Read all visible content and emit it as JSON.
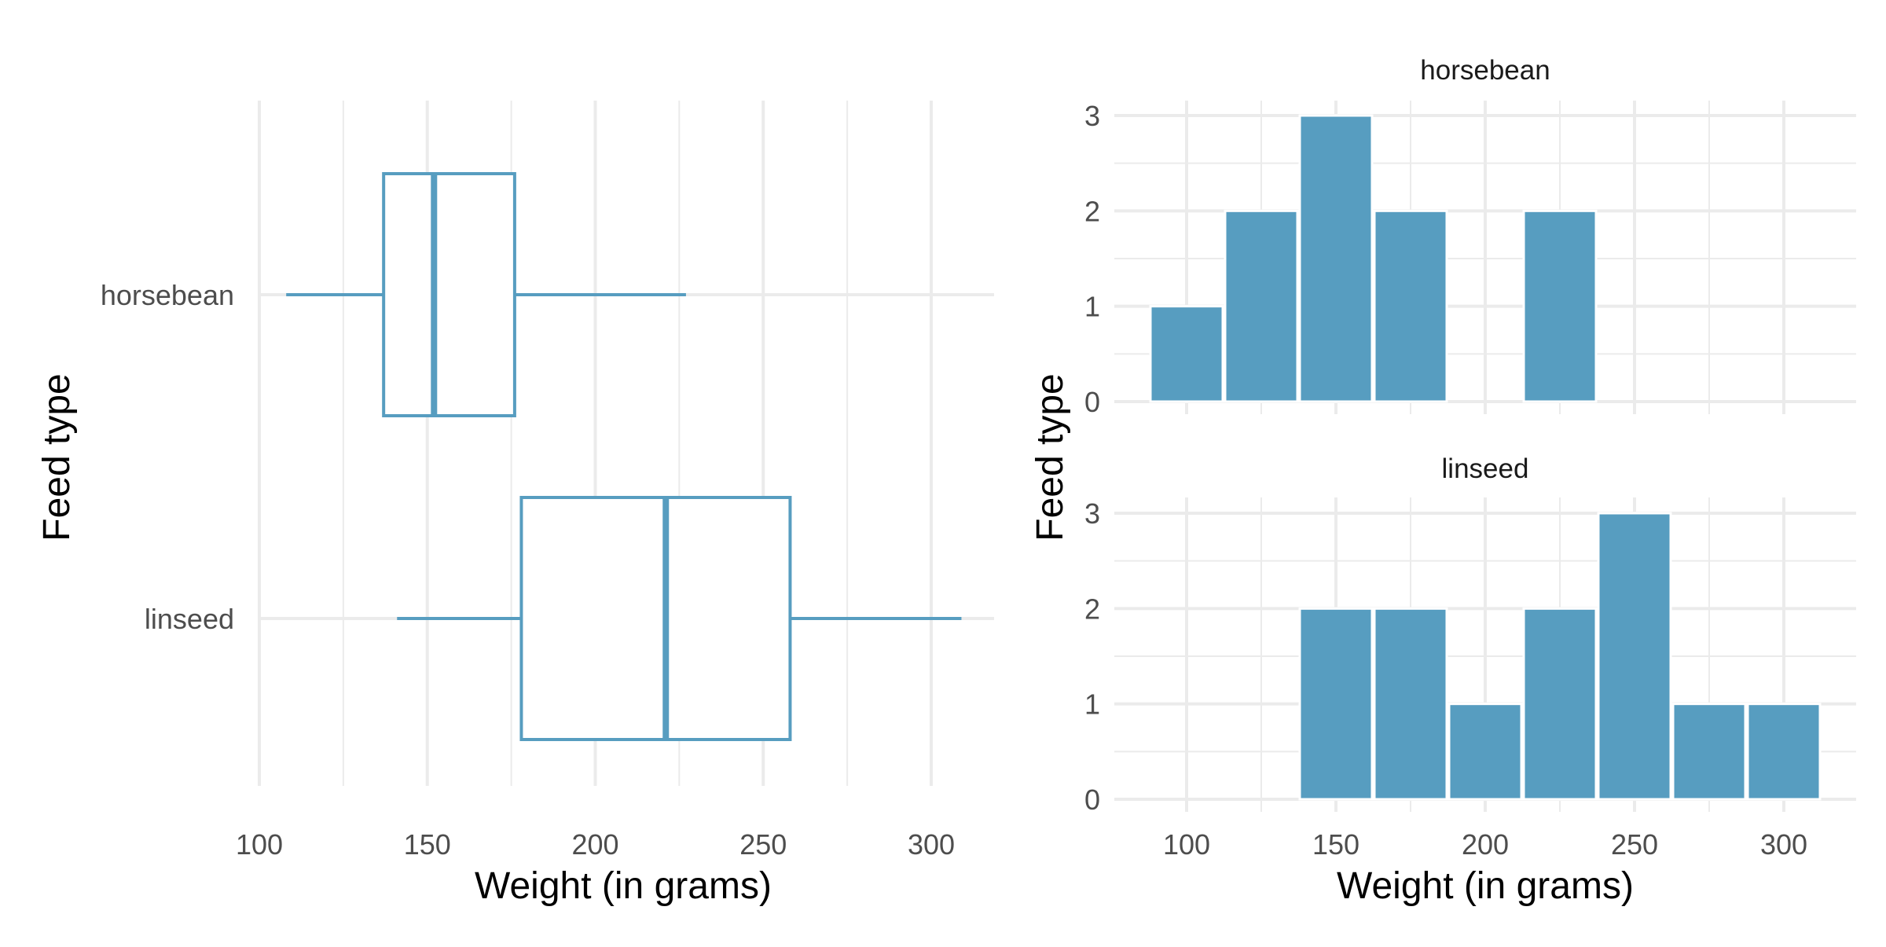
{
  "colors": {
    "fill": "#579dc0",
    "grid": "#ebebeb",
    "background": "#ffffff"
  },
  "chart_data": [
    {
      "type": "boxplot",
      "orientation": "horizontal",
      "xlabel": "Weight (in grams)",
      "ylabel": "Feed type",
      "xlim": [
        100,
        320
      ],
      "xticks": [
        100,
        150,
        200,
        250,
        300
      ],
      "grid": true,
      "categories": [
        "horsebean",
        "linseed"
      ],
      "series": [
        {
          "name": "horsebean",
          "whisker_low": 108,
          "q1": 137,
          "median": 152,
          "q3": 176,
          "whisker_high": 227
        },
        {
          "name": "linseed",
          "whisker_low": 141,
          "q1": 178,
          "median": 221,
          "q3": 258,
          "whisker_high": 309
        }
      ]
    },
    {
      "type": "histogram",
      "facet": "horsebean",
      "xlabel": "Weight (in grams)",
      "ylabel": "Feed type",
      "xlim": [
        100,
        312.5
      ],
      "ylim": [
        0,
        3
      ],
      "xticks": [
        100,
        150,
        200,
        250,
        300
      ],
      "yticks": [
        0,
        1,
        2,
        3
      ],
      "grid": true,
      "bin_width": 25,
      "bin_centers": [
        100,
        125,
        150,
        175,
        200,
        225,
        250,
        275,
        300
      ],
      "panels": [
        {
          "title": "horsebean",
          "counts": [
            1,
            2,
            3,
            2,
            0,
            2,
            0,
            0,
            0
          ]
        },
        {
          "title": "linseed",
          "counts": [
            0,
            0,
            2,
            2,
            1,
            2,
            3,
            1,
            1
          ]
        }
      ]
    }
  ]
}
